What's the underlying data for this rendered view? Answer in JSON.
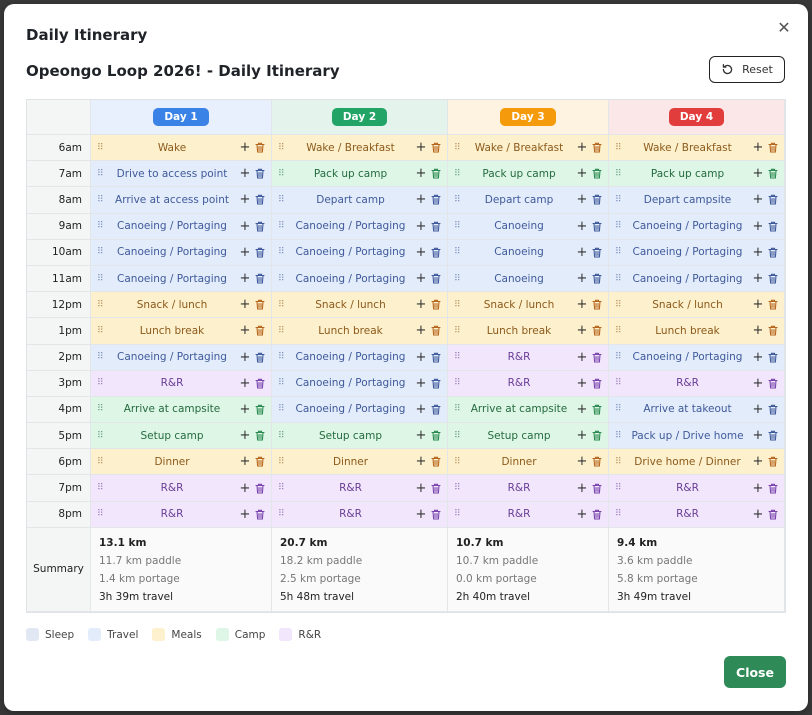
{
  "modal": {
    "title": "Daily Itinerary",
    "subtitle": "Opeongo Loop 2026! - Daily Itinerary",
    "reset_label": "Reset",
    "close_label": "Close"
  },
  "colors": {
    "travel": "#e3ecfb",
    "meals": "#fdf0cc",
    "camp": "#ddf6e6",
    "rr": "#f1e6fb",
    "sleep": "#e2e8f3"
  },
  "days": [
    {
      "label": "Day 1",
      "color": "#3b82e6"
    },
    {
      "label": "Day 2",
      "color": "#21a466"
    },
    {
      "label": "Day 3",
      "color": "#f59b0b"
    },
    {
      "label": "Day 4",
      "color": "#e23d3d"
    }
  ],
  "times": [
    "6am",
    "7am",
    "8am",
    "9am",
    "10am",
    "11am",
    "12pm",
    "1pm",
    "2pm",
    "3pm",
    "4pm",
    "5pm",
    "6pm",
    "7pm",
    "8pm"
  ],
  "schedule": [
    [
      {
        "label": "Wake",
        "type": "meals"
      },
      {
        "label": "Drive to access point",
        "type": "travel"
      },
      {
        "label": "Arrive at access point",
        "type": "travel"
      },
      {
        "label": "Canoeing / Portaging",
        "type": "travel"
      },
      {
        "label": "Canoeing / Portaging",
        "type": "travel"
      },
      {
        "label": "Canoeing / Portaging",
        "type": "travel"
      },
      {
        "label": "Snack / lunch",
        "type": "meals"
      },
      {
        "label": "Lunch break",
        "type": "meals"
      },
      {
        "label": "Canoeing / Portaging",
        "type": "travel"
      },
      {
        "label": "R&R",
        "type": "rr"
      },
      {
        "label": "Arrive at campsite",
        "type": "camp"
      },
      {
        "label": "Setup camp",
        "type": "camp"
      },
      {
        "label": "Dinner",
        "type": "meals"
      },
      {
        "label": "R&R",
        "type": "rr"
      },
      {
        "label": "R&R",
        "type": "rr"
      }
    ],
    [
      {
        "label": "Wake / Breakfast",
        "type": "meals"
      },
      {
        "label": "Pack up camp",
        "type": "camp"
      },
      {
        "label": "Depart camp",
        "type": "travel"
      },
      {
        "label": "Canoeing / Portaging",
        "type": "travel"
      },
      {
        "label": "Canoeing / Portaging",
        "type": "travel"
      },
      {
        "label": "Canoeing / Portaging",
        "type": "travel"
      },
      {
        "label": "Snack / lunch",
        "type": "meals"
      },
      {
        "label": "Lunch break",
        "type": "meals"
      },
      {
        "label": "Canoeing / Portaging",
        "type": "travel"
      },
      {
        "label": "Canoeing / Portaging",
        "type": "travel"
      },
      {
        "label": "Canoeing / Portaging",
        "type": "travel"
      },
      {
        "label": "Setup camp",
        "type": "camp"
      },
      {
        "label": "Dinner",
        "type": "meals"
      },
      {
        "label": "R&R",
        "type": "rr"
      },
      {
        "label": "R&R",
        "type": "rr"
      }
    ],
    [
      {
        "label": "Wake / Breakfast",
        "type": "meals"
      },
      {
        "label": "Pack up camp",
        "type": "camp"
      },
      {
        "label": "Depart camp",
        "type": "travel"
      },
      {
        "label": "Canoeing",
        "type": "travel"
      },
      {
        "label": "Canoeing",
        "type": "travel"
      },
      {
        "label": "Canoeing",
        "type": "travel"
      },
      {
        "label": "Snack / lunch",
        "type": "meals"
      },
      {
        "label": "Lunch break",
        "type": "meals"
      },
      {
        "label": "R&R",
        "type": "rr"
      },
      {
        "label": "R&R",
        "type": "rr"
      },
      {
        "label": "Arrive at campsite",
        "type": "camp"
      },
      {
        "label": "Setup camp",
        "type": "camp"
      },
      {
        "label": "Dinner",
        "type": "meals"
      },
      {
        "label": "R&R",
        "type": "rr"
      },
      {
        "label": "R&R",
        "type": "rr"
      }
    ],
    [
      {
        "label": "Wake / Breakfast",
        "type": "meals"
      },
      {
        "label": "Pack up camp",
        "type": "camp"
      },
      {
        "label": "Depart campsite",
        "type": "travel"
      },
      {
        "label": "Canoeing / Portaging",
        "type": "travel"
      },
      {
        "label": "Canoeing / Portaging",
        "type": "travel"
      },
      {
        "label": "Canoeing / Portaging",
        "type": "travel"
      },
      {
        "label": "Snack / lunch",
        "type": "meals"
      },
      {
        "label": "Lunch break",
        "type": "meals"
      },
      {
        "label": "Canoeing / Portaging",
        "type": "travel"
      },
      {
        "label": "R&R",
        "type": "rr"
      },
      {
        "label": "Arrive at takeout",
        "type": "travel"
      },
      {
        "label": "Pack up / Drive home",
        "type": "travel"
      },
      {
        "label": "Drive home / Dinner",
        "type": "meals"
      },
      {
        "label": "R&R",
        "type": "rr"
      },
      {
        "label": "R&R",
        "type": "rr"
      }
    ]
  ],
  "summary_label": "Summary",
  "summary": [
    {
      "total": "13.1 km",
      "paddle": "11.7 km paddle",
      "portage": "1.4 km portage",
      "travel": "3h 39m travel"
    },
    {
      "total": "20.7 km",
      "paddle": "18.2 km paddle",
      "portage": "2.5 km portage",
      "travel": "5h 48m travel"
    },
    {
      "total": "10.7 km",
      "paddle": "10.7 km paddle",
      "portage": "0.0 km portage",
      "travel": "2h 40m travel"
    },
    {
      "total": "9.4 km",
      "paddle": "3.6 km paddle",
      "portage": "5.8 km portage",
      "travel": "3h 49m travel"
    }
  ],
  "legend": [
    {
      "label": "Sleep",
      "key": "sleep"
    },
    {
      "label": "Travel",
      "key": "travel"
    },
    {
      "label": "Meals",
      "key": "meals"
    },
    {
      "label": "Camp",
      "key": "camp"
    },
    {
      "label": "R&R",
      "key": "rr"
    }
  ]
}
